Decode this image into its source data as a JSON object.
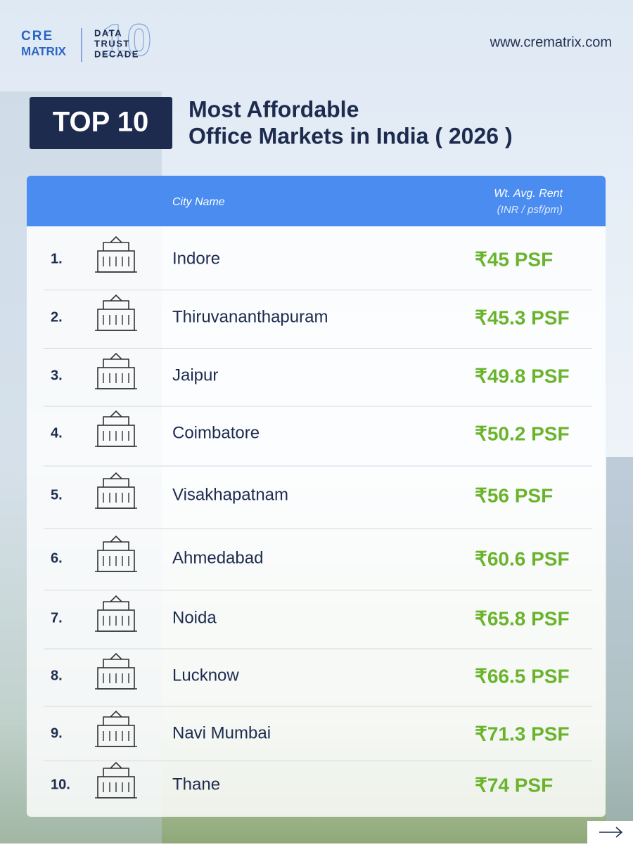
{
  "header": {
    "logo_top": "CRE",
    "logo_bottom": "MATRIX",
    "badge_lines": [
      "DATA",
      "TRUST",
      "DECADE"
    ],
    "badge_number": "10",
    "website": "www.crematrix.com"
  },
  "title": {
    "badge": "TOP 10",
    "line1": "Most Affordable",
    "line2": "Office Markets in India ( 2026 )"
  },
  "table": {
    "columns": {
      "city": "City Name",
      "rent": "Wt. Avg. Rent",
      "rent_unit": "(INR / psf/pm)"
    },
    "rows": [
      [
        "1.",
        "Indore",
        "₹45 PSF"
      ],
      [
        "2.",
        "Thiruvananthapuram",
        "₹45.3 PSF"
      ],
      [
        "3.",
        "Jaipur",
        "₹49.8 PSF"
      ],
      [
        "4.",
        "Coimbatore",
        "₹50.2 PSF"
      ],
      [
        "5.",
        "Visakhapatnam",
        "₹56 PSF"
      ],
      [
        "6.",
        "Ahmedabad",
        "₹60.6 PSF"
      ],
      [
        "7.",
        "Noida",
        "₹65.8 PSF"
      ],
      [
        "8.",
        "Lucknow",
        "₹66.5 PSF"
      ],
      [
        "9.",
        "Navi Mumbai",
        "₹71.3 PSF"
      ],
      [
        "10.",
        "Thane",
        "₹74 PSF"
      ]
    ]
  }
}
